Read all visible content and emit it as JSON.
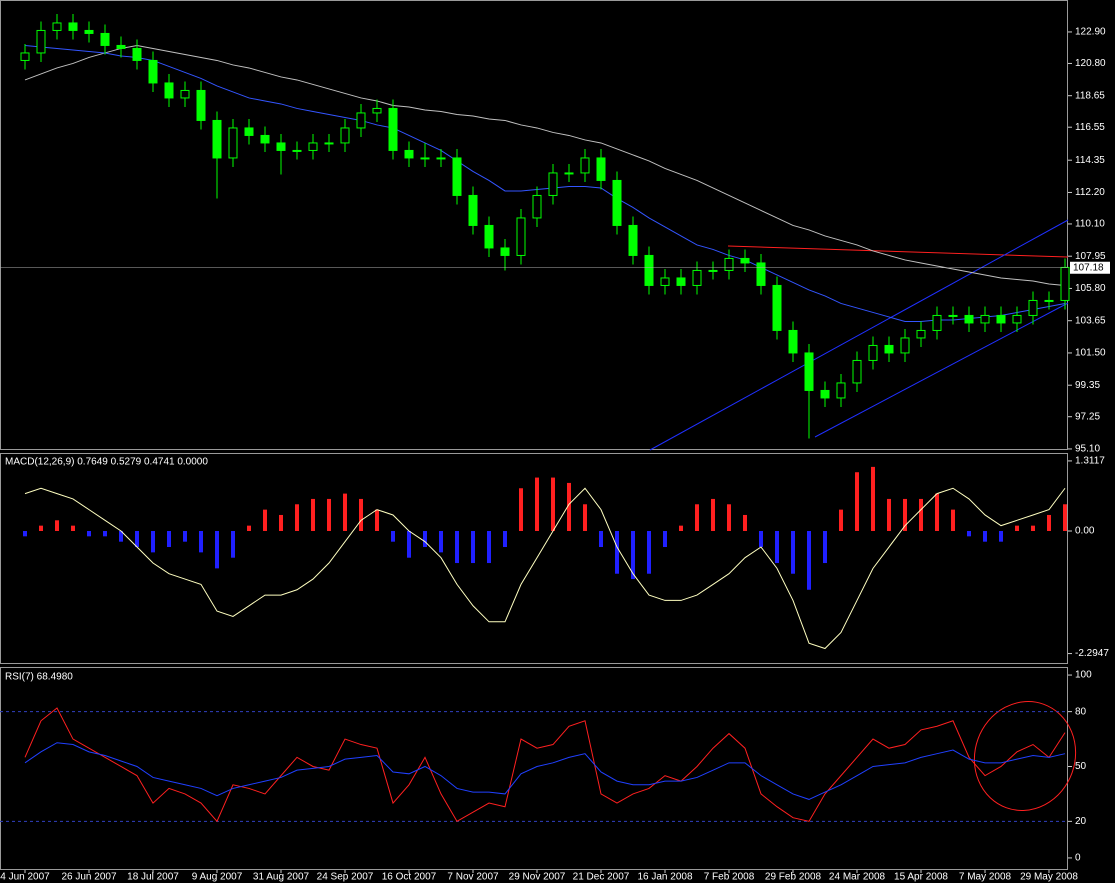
{
  "chart_data": [
    {
      "type": "candlestick",
      "categories": [
        "4 Jun 2007",
        null,
        null,
        null,
        "26 Jun 2007",
        null,
        null,
        null,
        "18 Jul 2007",
        null,
        null,
        null,
        "9 Aug 2007",
        null,
        null,
        null,
        "31 Aug 2007",
        null,
        null,
        null,
        "24 Sep 2007",
        null,
        null,
        null,
        "16 Oct 2007",
        null,
        null,
        null,
        "7 Nov 2007",
        null,
        null,
        null,
        "29 Nov 2007",
        null,
        null,
        null,
        "21 Dec 2007",
        null,
        null,
        null,
        "16 Jan 2008",
        null,
        null,
        null,
        "7 Feb 2008",
        null,
        null,
        null,
        "29 Feb 2008",
        null,
        null,
        null,
        "24 Mar 2008",
        null,
        null,
        null,
        "15 Apr 2008",
        null,
        null,
        null,
        "7 May 2008",
        null,
        null,
        null,
        "29 May 2008",
        null
      ],
      "open": [
        121,
        121.5,
        123,
        123.5,
        123,
        122.8,
        122,
        121.8,
        121,
        119.5,
        118.5,
        119,
        117,
        114.5,
        116.5,
        116,
        115.5,
        115,
        115,
        115.5,
        115.5,
        116.5,
        117.5,
        117.8,
        115,
        114.5,
        114.5,
        114.5,
        112,
        110,
        108.5,
        108,
        110.5,
        112,
        113.5,
        113.5,
        114.5,
        113,
        110,
        108,
        106,
        106.5,
        106,
        107,
        107,
        107.8,
        107.5,
        106,
        103,
        101.5,
        99,
        98.5,
        99.5,
        101,
        102,
        101.5,
        102.5,
        103,
        104,
        104,
        103.5,
        104,
        103.5,
        104,
        105,
        105
      ],
      "high": [
        122.1,
        123.6,
        124.1,
        124.1,
        123.6,
        123.4,
        122.6,
        122.4,
        121.6,
        120.1,
        119.6,
        119.6,
        117.6,
        117.1,
        117.1,
        116.6,
        116.1,
        115.6,
        116.1,
        116.1,
        117.1,
        118.1,
        118.4,
        118.4,
        115.6,
        115.5,
        115.1,
        115.1,
        112.6,
        110.6,
        109.1,
        111.1,
        112.6,
        114.1,
        114.1,
        115.1,
        115.1,
        113.6,
        110.6,
        108.6,
        107.1,
        107.1,
        107.6,
        107.6,
        108.4,
        108.4,
        108.1,
        106.6,
        103.6,
        102.1,
        99.6,
        100.1,
        101.6,
        102.6,
        102.6,
        103.1,
        103.6,
        104.6,
        104.6,
        104.6,
        104.6,
        104.6,
        104.6,
        105.6,
        105.6,
        107.8
      ],
      "low": [
        120.4,
        120.9,
        122.4,
        122.4,
        122.2,
        121.4,
        121.2,
        120.4,
        118.9,
        117.9,
        117.9,
        116.4,
        111.8,
        113.9,
        115.4,
        114.9,
        113.4,
        114.4,
        114.4,
        114.9,
        114.9,
        115.9,
        116.9,
        114.4,
        113.9,
        113.9,
        113.9,
        111.4,
        109.4,
        107.9,
        107.0,
        107.4,
        109.9,
        111.4,
        112.9,
        112.9,
        112.4,
        109.4,
        107.4,
        105.4,
        105.4,
        105.4,
        105.4,
        106.4,
        106.4,
        106.9,
        105.4,
        102.4,
        100.9,
        95.8,
        97.9,
        97.9,
        98.9,
        100.4,
        100.9,
        100.9,
        101.9,
        102.4,
        103.4,
        102.9,
        102.9,
        102.9,
        102.9,
        103.4,
        104.4,
        104.4
      ],
      "close": [
        121.5,
        123,
        123.5,
        123,
        122.8,
        122,
        121.8,
        121,
        119.5,
        118.5,
        119,
        117,
        114.5,
        116.5,
        116,
        115.5,
        115,
        115,
        115.5,
        115.5,
        116.5,
        117.5,
        117.8,
        115,
        114.5,
        114.5,
        114.5,
        112,
        110,
        108.5,
        108,
        110.5,
        112,
        113.5,
        113.5,
        114.5,
        113,
        110,
        108,
        106,
        106.5,
        106,
        107,
        107,
        107.8,
        107.5,
        106,
        103,
        101.5,
        99,
        98.5,
        99.5,
        101,
        102,
        101.5,
        102.5,
        103,
        104,
        104,
        103.5,
        104,
        103.5,
        104,
        105,
        105,
        107.2
      ],
      "color": "#00ff00",
      "lines": [
        {
          "color": "#c0c0c0",
          "values": [
            119.7,
            120.1,
            120.5,
            120.8,
            121.2,
            121.5,
            121.8,
            122.0,
            121.8,
            121.6,
            121.4,
            121.2,
            121.0,
            120.7,
            120.5,
            120.2,
            119.9,
            119.7,
            119.4,
            119.1,
            118.8,
            118.5,
            118.3,
            118.0,
            117.9,
            117.7,
            117.6,
            117.4,
            117.3,
            117.1,
            117.0,
            116.7,
            116.5,
            116.2,
            116.0,
            115.7,
            115.5,
            115.1,
            114.7,
            114.3,
            113.8,
            113.4,
            113.0,
            112.5,
            112.0,
            111.5,
            111.0,
            110.5,
            110.0,
            109.7,
            109.3,
            109.0,
            108.7,
            108.3,
            108.0,
            107.7,
            107.5,
            107.3,
            107.1,
            106.9,
            106.7,
            106.5,
            106.4,
            106.3,
            106.1,
            106.0
          ]
        },
        {
          "color": "#3355ff",
          "values": [
            122.0,
            121.9,
            121.8,
            121.7,
            121.6,
            121.5,
            121.3,
            121.2,
            121.0,
            120.6,
            120.2,
            119.8,
            119.3,
            118.9,
            118.5,
            118.3,
            118.1,
            117.8,
            117.6,
            117.4,
            117.2,
            117.0,
            116.7,
            116.5,
            116.0,
            115.5,
            115.0,
            114.3,
            113.6,
            113.0,
            112.3,
            112.3,
            112.4,
            112.5,
            112.6,
            112.6,
            112.5,
            111.8,
            111.2,
            110.5,
            109.9,
            109.3,
            108.7,
            108.4,
            108.0,
            107.7,
            107.2,
            106.7,
            106.2,
            105.7,
            105.3,
            104.8,
            104.5,
            104.2,
            103.9,
            103.6,
            103.6,
            103.7,
            103.7,
            103.8,
            103.9,
            104.0,
            104.2,
            104.4,
            104.6,
            104.8
          ]
        }
      ],
      "last_price": 107.18,
      "ylim": [
        95.03,
        125.03
      ],
      "yticks": [
        {
          "value": 122.9,
          "label": "122.90"
        },
        {
          "value": 120.8,
          "label": "120.80"
        },
        118.65,
        116.55,
        114.35,
        {
          "value": 112.2,
          "label": "112.20"
        },
        {
          "value": 110.1,
          "label": "110.10"
        },
        107.95,
        {
          "value": 105.8,
          "label": "105.80"
        },
        103.65,
        {
          "value": 101.5,
          "label": "101.50"
        },
        99.35,
        97.25,
        {
          "value": 95.1,
          "label": "95.10"
        }
      ]
    },
    {
      "type": "bar",
      "title": "MACD(12,26,9) 0.7649 0.5279 0.4741 0.0000",
      "values": [
        -0.1,
        0.1,
        0.2,
        0.1,
        -0.1,
        -0.1,
        -0.2,
        -0.3,
        -0.4,
        -0.3,
        -0.2,
        -0.4,
        -0.7,
        -0.5,
        0.1,
        0.4,
        0.3,
        0.5,
        0.6,
        0.6,
        0.7,
        0.6,
        0.4,
        -0.2,
        -0.5,
        -0.3,
        -0.4,
        -0.6,
        -0.6,
        -0.6,
        -0.3,
        0.8,
        1.0,
        1.0,
        0.9,
        0.5,
        -0.3,
        -0.8,
        -0.9,
        -0.8,
        -0.3,
        0.1,
        0.5,
        0.6,
        0.5,
        0.3,
        -0.3,
        -0.6,
        -0.8,
        -1.1,
        -0.6,
        0.4,
        1.1,
        1.2,
        0.6,
        0.6,
        0.6,
        0.7,
        0.4,
        -0.1,
        -0.2,
        -0.2,
        0.1,
        0.1,
        0.3,
        0.5
      ],
      "up_color": "#ff2020",
      "down_color": "#2020ff",
      "line": {
        "color": "#ffffc0",
        "values": [
          0.7,
          0.8,
          0.7,
          0.6,
          0.4,
          0.2,
          0.0,
          -0.3,
          -0.6,
          -0.8,
          -0.9,
          -1.0,
          -1.5,
          -1.6,
          -1.4,
          -1.2,
          -1.2,
          -1.1,
          -0.9,
          -0.6,
          -0.2,
          0.2,
          0.4,
          0.3,
          0.0,
          -0.2,
          -0.5,
          -1.0,
          -1.4,
          -1.7,
          -1.7,
          -1.0,
          -0.5,
          0.0,
          0.5,
          0.8,
          0.4,
          -0.3,
          -0.8,
          -1.2,
          -1.3,
          -1.3,
          -1.2,
          -1.0,
          -0.8,
          -0.5,
          -0.3,
          -0.7,
          -1.3,
          -2.1,
          -2.2,
          -1.9,
          -1.3,
          -0.7,
          -0.3,
          0.1,
          0.4,
          0.7,
          0.8,
          0.6,
          0.3,
          0.1,
          0.2,
          0.3,
          0.4,
          0.8
        ]
      },
      "ylim": [
        -2.49,
        1.46
      ],
      "yticks": [
        1.3117,
        {
          "value": 0,
          "label": "0.00"
        },
        -2.2947
      ]
    },
    {
      "type": "line",
      "title": "RSI(7) 68.4980",
      "series": [
        {
          "color": "#ff2020",
          "values": [
            55,
            75,
            82,
            65,
            60,
            55,
            50,
            45,
            30,
            38,
            35,
            30,
            20,
            40,
            38,
            35,
            45,
            55,
            50,
            48,
            65,
            62,
            60,
            30,
            40,
            55,
            35,
            20,
            25,
            30,
            28,
            65,
            60,
            62,
            72,
            75,
            35,
            30,
            35,
            38,
            45,
            42,
            50,
            60,
            68,
            60,
            35,
            28,
            22,
            20,
            35,
            45,
            55,
            65,
            60,
            62,
            70,
            72,
            75,
            55,
            45,
            50,
            58,
            62,
            55,
            68.5
          ]
        },
        {
          "color": "#2040ff",
          "values": [
            52,
            58,
            63,
            62,
            58,
            56,
            53,
            50,
            44,
            42,
            40,
            38,
            34,
            38,
            40,
            42,
            44,
            48,
            49,
            50,
            54,
            55,
            56,
            47,
            46,
            50,
            45,
            38,
            36,
            36,
            35,
            46,
            50,
            52,
            55,
            57,
            47,
            42,
            40,
            40,
            42,
            42,
            44,
            48,
            52,
            52,
            45,
            40,
            35,
            32,
            36,
            40,
            45,
            50,
            51,
            52,
            55,
            57,
            59,
            54,
            52,
            52,
            54,
            56,
            55,
            57
          ]
        }
      ],
      "levels": [
        80,
        20
      ],
      "ylim": [
        -6.6,
        104.4
      ],
      "yticks": [
        100,
        80,
        50,
        20,
        0
      ]
    }
  ]
}
